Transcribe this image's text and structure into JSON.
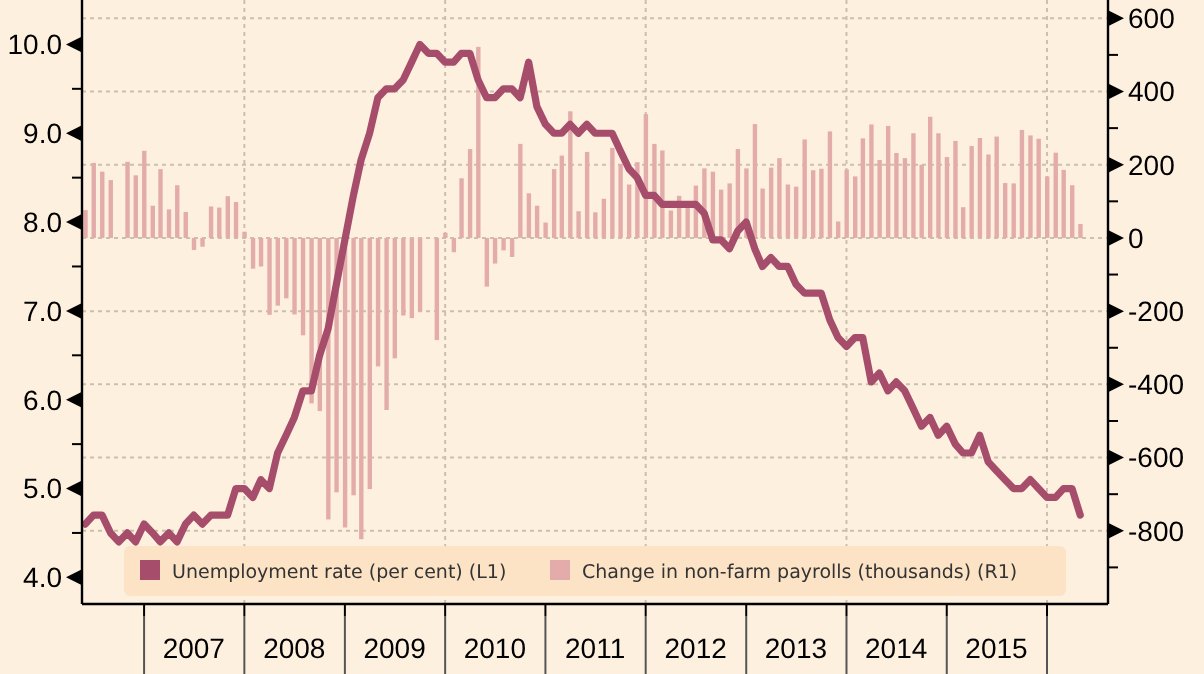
{
  "chart_data": {
    "type": "line",
    "x": [
      "2006-06",
      "2006-07",
      "2006-08",
      "2006-09",
      "2006-10",
      "2006-11",
      "2006-12",
      "2007-01",
      "2007-02",
      "2007-03",
      "2007-04",
      "2007-05",
      "2007-06",
      "2007-07",
      "2007-08",
      "2007-09",
      "2007-10",
      "2007-11",
      "2007-12",
      "2008-01",
      "2008-02",
      "2008-03",
      "2008-04",
      "2008-05",
      "2008-06",
      "2008-07",
      "2008-08",
      "2008-09",
      "2008-10",
      "2008-11",
      "2008-12",
      "2009-01",
      "2009-02",
      "2009-03",
      "2009-04",
      "2009-05",
      "2009-06",
      "2009-07",
      "2009-08",
      "2009-09",
      "2009-10",
      "2009-11",
      "2009-12",
      "2010-01",
      "2010-02",
      "2010-03",
      "2010-04",
      "2010-05",
      "2010-06",
      "2010-07",
      "2010-08",
      "2010-09",
      "2010-10",
      "2010-11",
      "2010-12",
      "2011-01",
      "2011-02",
      "2011-03",
      "2011-04",
      "2011-05",
      "2011-06",
      "2011-07",
      "2011-08",
      "2011-09",
      "2011-10",
      "2011-11",
      "2011-12",
      "2012-01",
      "2012-02",
      "2012-03",
      "2012-04",
      "2012-05",
      "2012-06",
      "2012-07",
      "2012-08",
      "2012-09",
      "2012-10",
      "2012-11",
      "2012-12",
      "2013-01",
      "2013-02",
      "2013-03",
      "2013-04",
      "2013-05",
      "2013-06",
      "2013-07",
      "2013-08",
      "2013-09",
      "2013-10",
      "2013-11",
      "2013-12",
      "2014-01",
      "2014-02",
      "2014-03",
      "2014-04",
      "2014-05",
      "2014-06",
      "2014-07",
      "2014-08",
      "2014-09",
      "2014-10",
      "2014-11",
      "2014-12",
      "2015-01",
      "2015-02",
      "2015-03",
      "2015-04",
      "2015-05",
      "2015-06",
      "2015-07",
      "2015-08",
      "2015-09",
      "2015-10",
      "2015-11",
      "2015-12",
      "2016-01",
      "2016-02",
      "2016-03",
      "2016-04",
      "2016-05"
    ],
    "series": [
      {
        "name": "Change in non-farm payrolls (thousands) (R1)",
        "type": "bar",
        "axis": "y2",
        "color": "#e3acab",
        "values": [
          76,
          205,
          181,
          158,
          null,
          208,
          171,
          238,
          88,
          188,
          78,
          144,
          71,
          -33,
          -24,
          86,
          83,
          114,
          98,
          17,
          -84,
          -78,
          -210,
          -185,
          -165,
          -209,
          -266,
          -452,
          -473,
          -769,
          -695,
          -791,
          -703,
          -823,
          -686,
          -351,
          -470,
          -329,
          -212,
          -219,
          -200,
          null,
          -279,
          14,
          -39,
          163,
          243,
          522,
          -133,
          -70,
          -34,
          -52,
          257,
          122,
          88,
          42,
          188,
          225,
          346,
          73,
          235,
          70,
          107,
          246,
          202,
          146,
          207,
          338,
          257,
          239,
          75,
          115,
          87,
          143,
          190,
          181,
          132,
          149,
          243,
          190,
          311,
          135,
          192,
          218,
          146,
          140,
          269,
          185,
          189,
          291,
          45,
          187,
          168,
          272,
          310,
          213,
          306,
          232,
          218,
          286,
          200,
          331,
          286,
          221,
          265,
          84,
          251,
          273,
          228,
          277,
          150,
          149,
          295,
          280,
          271,
          168,
          233,
          186,
          144,
          38
        ]
      },
      {
        "name": "Unemployment rate (per cent) (L1)",
        "color": "#a64d6b",
        "values": [
          4.6,
          4.7,
          4.7,
          4.5,
          4.4,
          4.5,
          4.4,
          4.6,
          4.5,
          4.4,
          4.5,
          4.4,
          4.6,
          4.7,
          4.6,
          4.7,
          4.7,
          4.7,
          5.0,
          5.0,
          4.9,
          5.1,
          5.0,
          5.4,
          5.6,
          5.8,
          6.1,
          6.1,
          6.5,
          6.8,
          7.3,
          7.8,
          8.3,
          8.7,
          9.0,
          9.4,
          9.5,
          9.5,
          9.6,
          9.8,
          10.0,
          9.9,
          9.9,
          9.8,
          9.8,
          9.9,
          9.9,
          9.6,
          9.4,
          9.4,
          9.5,
          9.5,
          9.4,
          9.8,
          9.3,
          9.1,
          9.0,
          9.0,
          9.1,
          9.0,
          9.1,
          9.0,
          9.0,
          9.0,
          8.8,
          8.6,
          8.5,
          8.3,
          8.3,
          8.2,
          8.2,
          8.2,
          8.2,
          8.2,
          8.1,
          7.8,
          7.8,
          7.7,
          7.9,
          8.0,
          7.7,
          7.5,
          7.6,
          7.5,
          7.5,
          7.3,
          7.2,
          7.2,
          7.2,
          6.9,
          6.7,
          6.6,
          6.7,
          6.7,
          6.2,
          6.3,
          6.1,
          6.2,
          6.1,
          5.9,
          5.7,
          5.8,
          5.6,
          5.7,
          5.5,
          5.4,
          5.4,
          5.6,
          5.3,
          5.2,
          5.1,
          5.0,
          5.0,
          5.1,
          5.0,
          4.9,
          4.9,
          5.0,
          5.0,
          4.7
        ]
      }
    ],
    "xlim": [
      "2006-05-20",
      "2016-08-10"
    ],
    "xticks": [
      {
        "value": "2007-01",
        "label": null
      },
      {
        "value": "2007-07",
        "label": "2007"
      },
      {
        "value": "2008-01",
        "label": null
      },
      {
        "value": "2008-07",
        "label": "2008"
      },
      {
        "value": "2009-01",
        "label": null
      },
      {
        "value": "2009-07",
        "label": "2009"
      },
      {
        "value": "2010-01",
        "label": null
      },
      {
        "value": "2010-07",
        "label": "2010"
      },
      {
        "value": "2011-01",
        "label": null
      },
      {
        "value": "2011-07",
        "label": "2011"
      },
      {
        "value": "2012-01",
        "label": null
      },
      {
        "value": "2012-07",
        "label": "2012"
      },
      {
        "value": "2013-01",
        "label": null
      },
      {
        "value": "2013-07",
        "label": "2013"
      },
      {
        "value": "2014-01",
        "label": null
      },
      {
        "value": "2014-07",
        "label": "2014"
      },
      {
        "value": "2015-01",
        "label": null
      },
      {
        "value": "2015-07",
        "label": "2015"
      },
      {
        "value": "2016-01",
        "label": null
      }
    ],
    "ylim": [
      3.7,
      10.5
    ],
    "yticks": [
      {
        "value": 4,
        "label": "4.0"
      },
      {
        "value": 4.5,
        "label": null
      },
      {
        "value": 5,
        "label": "5.0"
      },
      {
        "value": 5.5,
        "label": null
      },
      {
        "value": 6,
        "label": "6.0"
      },
      {
        "value": 6.5,
        "label": null
      },
      {
        "value": 7,
        "label": "7.0"
      },
      {
        "value": 7.5,
        "label": null
      },
      {
        "value": 8,
        "label": "8.0"
      },
      {
        "value": 8.5,
        "label": null
      },
      {
        "value": 9,
        "label": "9.0"
      },
      {
        "value": 9.5,
        "label": null
      },
      {
        "value": 10,
        "label": "10.0"
      }
    ],
    "y2lim": [
      -1000,
      650
    ],
    "y2ticks": [
      {
        "value": -900,
        "label": null
      },
      -800,
      {
        "value": -700,
        "label": null
      },
      -600,
      {
        "value": -500,
        "label": null
      },
      -400,
      {
        "value": -300,
        "label": null
      },
      -200,
      {
        "value": -100,
        "label": null
      },
      0,
      {
        "value": 100,
        "label": null
      },
      200,
      {
        "value": 300,
        "label": null
      },
      400,
      {
        "value": 500,
        "label": null
      },
      600
    ],
    "grid": true,
    "legend": "bottom",
    "line_style": "solid",
    "marker": "none"
  }
}
